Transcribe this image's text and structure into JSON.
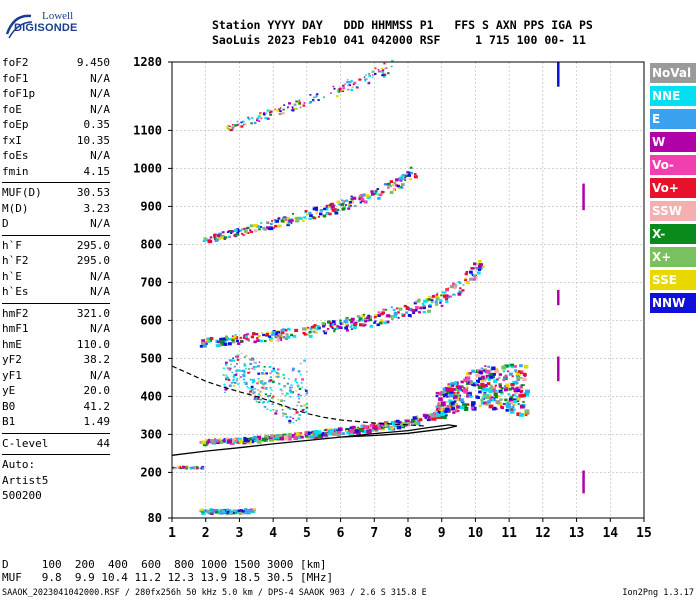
{
  "logo": {
    "line1": "Lowell",
    "line2": "DIGISONDE"
  },
  "header": {
    "line1": "Station YYYY DAY   DDD HHMMSS P1   FFS S AXN PPS IGA PS",
    "line2": "SaoLuis 2023 Feb10 041 042000 RSF     1 715 100 00- 11"
  },
  "params": {
    "group1": [
      {
        "key": "foF2",
        "value": "9.450"
      },
      {
        "key": "foF1",
        "value": "N/A"
      },
      {
        "key": "foF1p",
        "value": "N/A"
      },
      {
        "key": "foE",
        "value": "N/A"
      },
      {
        "key": "foEp",
        "value": "0.35"
      },
      {
        "key": "fxI",
        "value": "10.35"
      },
      {
        "key": "foEs",
        "value": "N/A"
      },
      {
        "key": "fmin",
        "value": "4.15"
      }
    ],
    "group2": [
      {
        "key": "MUF(D)",
        "value": "30.53"
      },
      {
        "key": "M(D)",
        "value": "3.23"
      },
      {
        "key": "D",
        "value": "N/A"
      }
    ],
    "group3": [
      {
        "key": "h`F",
        "value": "295.0"
      },
      {
        "key": "h`F2",
        "value": "295.0"
      },
      {
        "key": "h`E",
        "value": "N/A"
      },
      {
        "key": "h`Es",
        "value": "N/A"
      }
    ],
    "group4": [
      {
        "key": "hmF2",
        "value": "321.0"
      },
      {
        "key": "hmF1",
        "value": "N/A"
      },
      {
        "key": "hmE",
        "value": "110.0"
      },
      {
        "key": "yF2",
        "value": "38.2"
      },
      {
        "key": "yF1",
        "value": "N/A"
      },
      {
        "key": "yE",
        "value": "20.0"
      },
      {
        "key": "B0",
        "value": "41.2"
      },
      {
        "key": "B1",
        "value": "1.49"
      }
    ],
    "clevel": {
      "key": "C-level",
      "value": "44"
    },
    "auto": [
      "Auto:",
      "Artist5",
      "500200"
    ]
  },
  "legend": [
    {
      "label": "NoVal",
      "color": "#9a9a9a"
    },
    {
      "label": "NNE",
      "color": "#00e0f0"
    },
    {
      "label": "E",
      "color": "#3aa0f0"
    },
    {
      "label": "W",
      "color": "#b000a8"
    },
    {
      "label": "Vo-",
      "color": "#f040b0"
    },
    {
      "label": "Vo+",
      "color": "#e8102a"
    },
    {
      "label": "SSW",
      "color": "#f4b0b0"
    },
    {
      "label": "X-",
      "color": "#0a8a1a"
    },
    {
      "label": "X+",
      "color": "#78c060"
    },
    {
      "label": "SSE",
      "color": "#e8d800"
    },
    {
      "label": "NNW",
      "color": "#1010d8"
    }
  ],
  "footer": {
    "line1": "D     100  200  400  600  800 1000 1500 3000 [km]",
    "line2": "MUF   9.8  9.9 10.4 11.2 12.3 13.9 18.5 30.5 [MHz]",
    "line3": "SAAOK_2023041042000.RSF / 280fx256h 50 kHz 5.0 km / DPS-4 SAAOK 903 / 2.6 S 315.8 E",
    "version": "Ion2Png 1.3.17"
  },
  "chart_data": {
    "type": "scatter",
    "xlim": [
      1,
      15
    ],
    "ylim": [
      80,
      1280
    ],
    "x_ticks": [
      1,
      2,
      3,
      4,
      5,
      6,
      7,
      8,
      9,
      10,
      11,
      12,
      13,
      14,
      15
    ],
    "y_ticks": [
      80,
      200,
      300,
      400,
      500,
      600,
      700,
      800,
      900,
      1000,
      1100,
      1280
    ],
    "grid": true,
    "legend_position": "right",
    "traces": [
      {
        "name": "F2 O-trace",
        "points": [
          [
            1.8,
            283
          ],
          [
            3,
            288
          ],
          [
            4,
            295
          ],
          [
            5,
            303
          ],
          [
            6,
            312
          ],
          [
            7,
            322
          ],
          [
            8,
            336
          ],
          [
            8.8,
            355
          ],
          [
            9.3,
            380
          ],
          [
            9.45,
            430
          ]
        ]
      },
      {
        "name": "F2 2-hop",
        "points": [
          [
            1.8,
            545
          ],
          [
            3,
            553
          ],
          [
            4,
            562
          ],
          [
            5,
            575
          ],
          [
            6,
            590
          ],
          [
            7,
            608
          ],
          [
            8,
            630
          ],
          [
            9,
            660
          ],
          [
            9.6,
            700
          ],
          [
            10.3,
            770
          ]
        ]
      },
      {
        "name": "F2 3-hop",
        "points": [
          [
            1.9,
            815
          ],
          [
            3,
            835
          ],
          [
            4,
            858
          ],
          [
            5,
            880
          ],
          [
            6,
            905
          ],
          [
            7,
            935
          ],
          [
            7.8,
            970
          ],
          [
            8.2,
            1000
          ]
        ]
      },
      {
        "name": "F2 4-hop",
        "points": [
          [
            2.6,
            1110
          ],
          [
            3.5,
            1135
          ],
          [
            4.5,
            1165
          ],
          [
            5.5,
            1195
          ],
          [
            6.5,
            1230
          ],
          [
            7.5,
            1270
          ]
        ]
      },
      {
        "name": "X-trace",
        "points": [
          [
            8.8,
            380
          ],
          [
            9.3,
            400
          ],
          [
            9.8,
            420
          ],
          [
            10.3,
            430
          ],
          [
            11,
            425
          ],
          [
            11.5,
            415
          ]
        ]
      },
      {
        "name": "Es patch",
        "points": [
          [
            2.5,
            450
          ],
          [
            3,
            470
          ],
          [
            3.5,
            440
          ],
          [
            4,
            420
          ],
          [
            4.5,
            400
          ],
          [
            5,
            430
          ]
        ]
      }
    ],
    "profile_dashed": [
      [
        1,
        480
      ],
      [
        1.5,
        460
      ],
      [
        2,
        440
      ],
      [
        2.5,
        425
      ],
      [
        3,
        412
      ],
      [
        3.5,
        400
      ],
      [
        4,
        385
      ],
      [
        4.5,
        370
      ],
      [
        5,
        355
      ],
      [
        5.5,
        345
      ],
      [
        6,
        338
      ],
      [
        7,
        330
      ],
      [
        8,
        325
      ],
      [
        8.5,
        322
      ]
    ],
    "profile_solid": [
      [
        1,
        245
      ],
      [
        2,
        256
      ],
      [
        3,
        265
      ],
      [
        4,
        275
      ],
      [
        5,
        284
      ],
      [
        6,
        293
      ],
      [
        7,
        302
      ],
      [
        8,
        310
      ],
      [
        8.6,
        318
      ],
      [
        9.2,
        325
      ],
      [
        9.45,
        322
      ],
      [
        9.1,
        315
      ],
      [
        8,
        303
      ],
      [
        7,
        297
      ],
      [
        6,
        293
      ]
    ],
    "vertical_marks": [
      {
        "x": 12.45,
        "y0": 1215,
        "y1": 1280,
        "color": "#1010d8"
      },
      {
        "x": 12.45,
        "y0": 640,
        "y1": 680,
        "color": "#b000a8"
      },
      {
        "x": 12.45,
        "y0": 440,
        "y1": 505,
        "color": "#b000a8"
      },
      {
        "x": 13.2,
        "y0": 890,
        "y1": 960,
        "color": "#b000a8"
      },
      {
        "x": 13.2,
        "y0": 145,
        "y1": 205,
        "color": "#b000a8"
      }
    ]
  }
}
